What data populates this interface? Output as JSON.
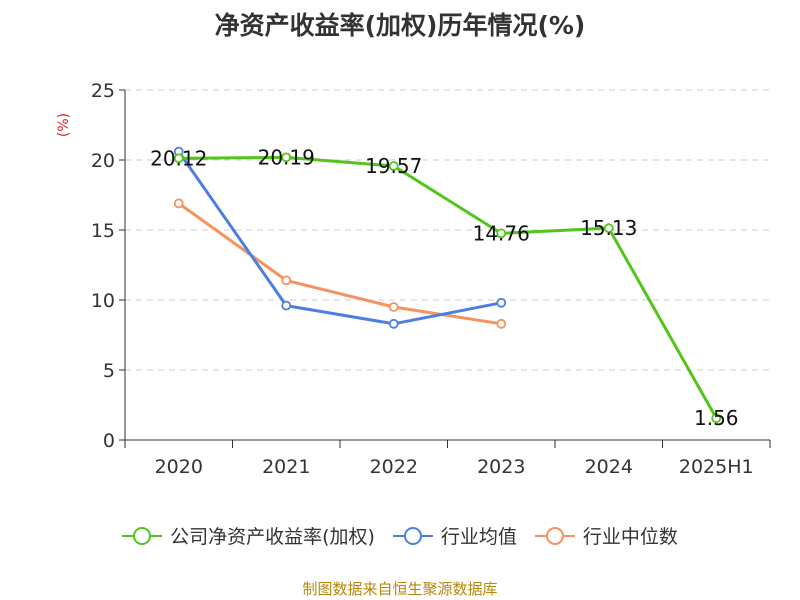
{
  "title": "净资产收益率(加权)历年情况(%)",
  "source": "制图数据来自恒生聚源数据库",
  "chart_data": {
    "type": "line",
    "categories": [
      "2020",
      "2021",
      "2022",
      "2023",
      "2024",
      "2025H1"
    ],
    "ylabel": "(%)",
    "ylim": [
      0,
      25
    ],
    "yticks": [
      0,
      5,
      10,
      15,
      20,
      25
    ],
    "grid": true,
    "legend_position": "bottom",
    "series": [
      {
        "name": "公司净资产收益率(加权)",
        "color": "#52c41a",
        "values": [
          20.12,
          20.19,
          19.57,
          14.76,
          15.13,
          1.56
        ],
        "labels": [
          "20.12",
          "20.19",
          "19.57",
          "14.76",
          "15.13",
          "1.56"
        ],
        "show_labels": true
      },
      {
        "name": "行业均值",
        "color": "#4c7fe0",
        "values": [
          20.6,
          9.6,
          8.3,
          9.8,
          null,
          null
        ],
        "show_labels": false
      },
      {
        "name": "行业中位数",
        "color": "#f5925e",
        "values": [
          16.9,
          11.4,
          9.5,
          8.3,
          null,
          null
        ],
        "show_labels": false
      }
    ]
  }
}
